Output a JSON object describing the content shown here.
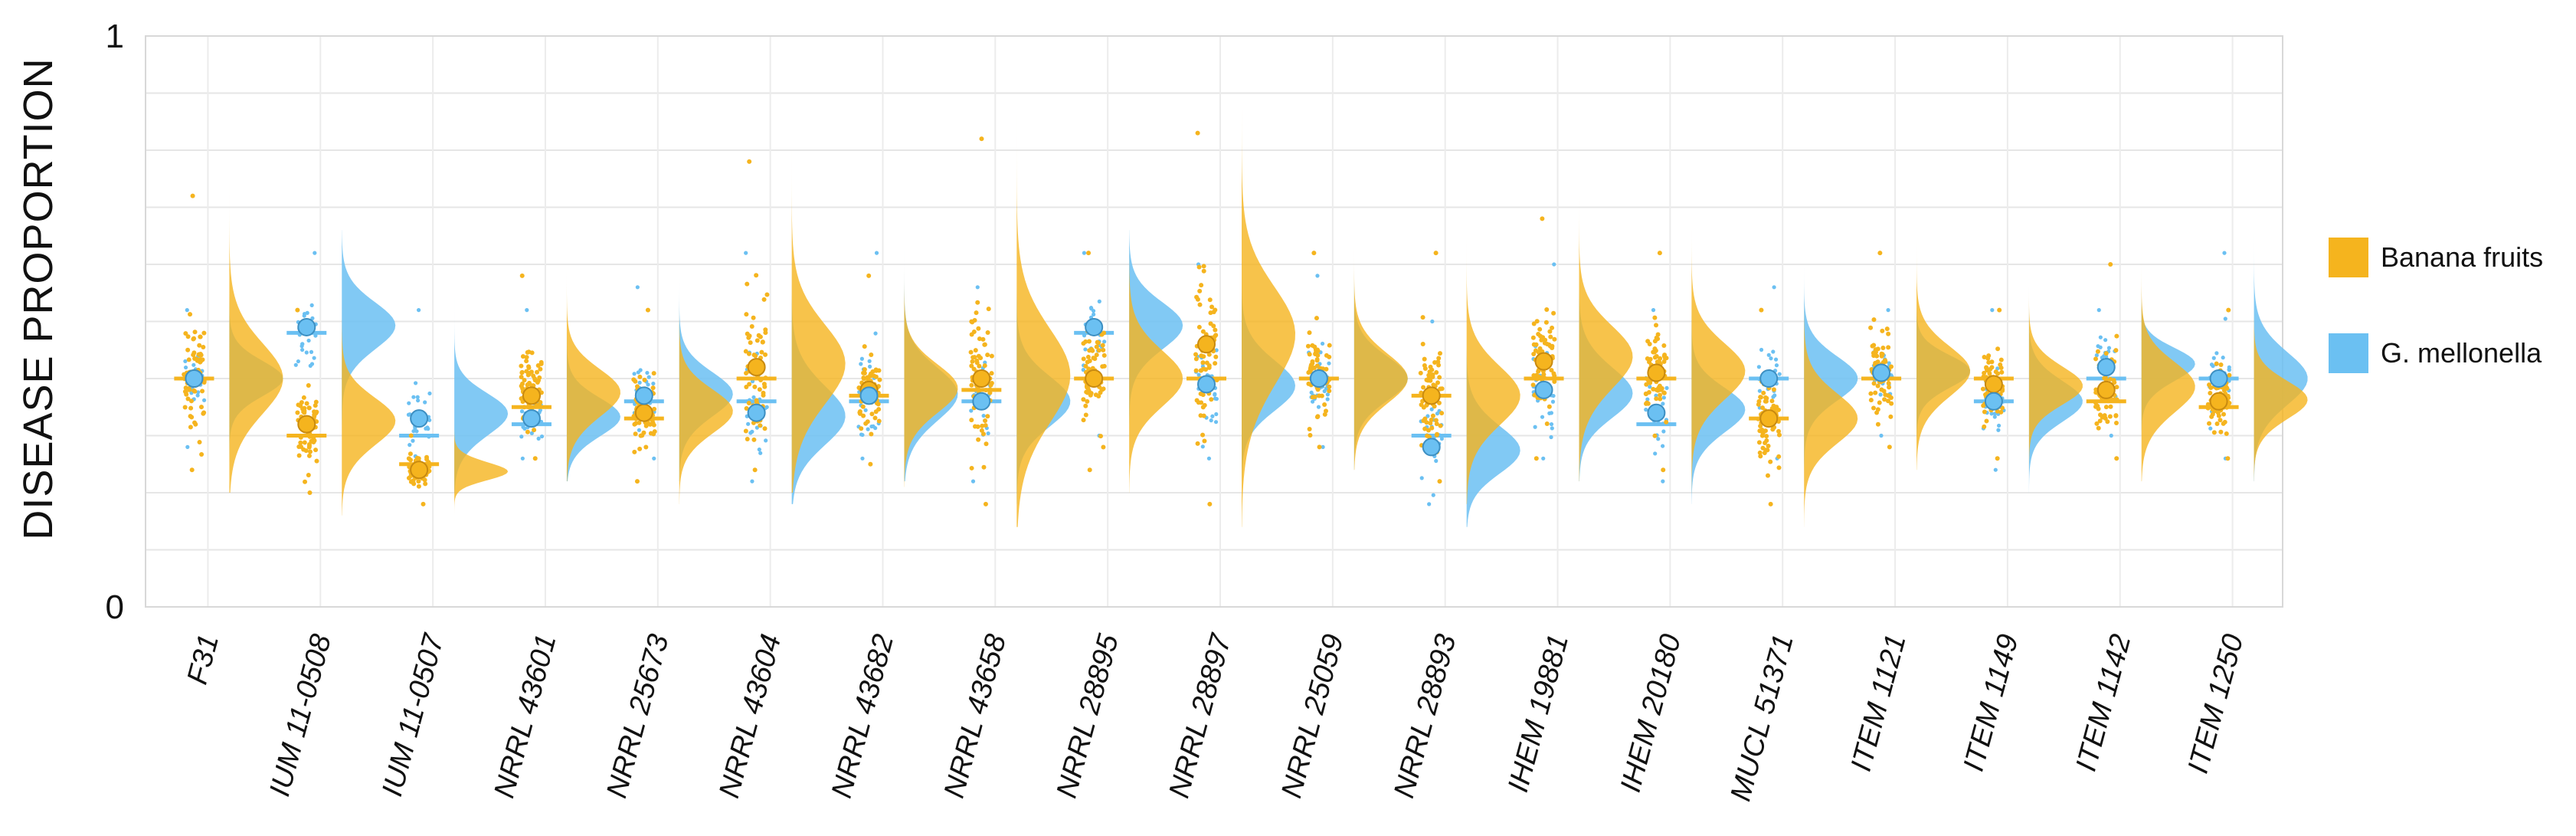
{
  "chart_data": {
    "type": "raincloud",
    "title": "",
    "xlabel": "",
    "ylabel": "DISEASE PROPORTION",
    "ylim": [
      0,
      1
    ],
    "y_ticks": [
      "0",
      "1"
    ],
    "grid": true,
    "legend_position": "right",
    "categories": [
      "F31",
      "IUM 11-0508",
      "IUM 11-0507",
      "NRRL 43601",
      "NRRL 25673",
      "NRRL 43604",
      "NRRL 43682",
      "NRRL 43658",
      "NRRL 28895",
      "NRRL 28897",
      "NRRL 25059",
      "NRRL 28893",
      "IHEM 19881",
      "IHEM 20180",
      "MUCL 51371",
      "ITEM 1121",
      "ITEM 1149",
      "ITEM 1142",
      "ITEM 1250"
    ],
    "series": [
      {
        "name": "Banana fruits",
        "color": "#F5B41E",
        "means": [
          0.4,
          0.32,
          0.24,
          0.37,
          0.34,
          0.42,
          0.38,
          0.4,
          0.4,
          0.46,
          0.4,
          0.37,
          0.43,
          0.41,
          0.33,
          0.41,
          0.39,
          0.38,
          0.36
        ],
        "medians": [
          0.4,
          0.3,
          0.25,
          0.35,
          0.33,
          0.4,
          0.37,
          0.38,
          0.4,
          0.4,
          0.4,
          0.37,
          0.4,
          0.4,
          0.33,
          0.4,
          0.4,
          0.36,
          0.35
        ],
        "mins": [
          0.24,
          0.2,
          0.18,
          0.26,
          0.22,
          0.24,
          0.25,
          0.18,
          0.24,
          0.18,
          0.28,
          0.22,
          0.26,
          0.24,
          0.18,
          0.28,
          0.26,
          0.26,
          0.26
        ],
        "maxs": [
          0.72,
          0.52,
          0.3,
          0.58,
          0.52,
          0.78,
          0.58,
          0.82,
          0.62,
          0.83,
          0.62,
          0.62,
          0.68,
          0.62,
          0.52,
          0.62,
          0.52,
          0.6,
          0.52
        ]
      },
      {
        "name": "G. mellonella",
        "color": "#6BC0F2",
        "means": [
          0.4,
          0.49,
          0.33,
          0.33,
          0.37,
          0.34,
          0.37,
          0.36,
          0.49,
          0.39,
          0.4,
          0.28,
          0.38,
          0.34,
          0.4,
          0.41,
          0.36,
          0.42,
          0.4
        ],
        "medians": [
          0.4,
          0.48,
          0.3,
          0.32,
          0.36,
          0.36,
          0.36,
          0.36,
          0.48,
          0.4,
          0.4,
          0.3,
          0.4,
          0.32,
          0.4,
          0.4,
          0.36,
          0.4,
          0.4
        ],
        "mins": [
          0.28,
          0.3,
          0.24,
          0.26,
          0.26,
          0.22,
          0.26,
          0.22,
          0.3,
          0.26,
          0.28,
          0.18,
          0.26,
          0.22,
          0.26,
          0.3,
          0.24,
          0.3,
          0.26
        ],
        "maxs": [
          0.52,
          0.62,
          0.52,
          0.52,
          0.56,
          0.62,
          0.62,
          0.56,
          0.62,
          0.6,
          0.58,
          0.5,
          0.6,
          0.52,
          0.56,
          0.52,
          0.52,
          0.52,
          0.62
        ]
      }
    ]
  },
  "legend": {
    "items": [
      {
        "label": "Banana fruits",
        "color": "#F5B41E"
      },
      {
        "label": "G. mellonella",
        "color": "#6BC0F2"
      }
    ]
  }
}
